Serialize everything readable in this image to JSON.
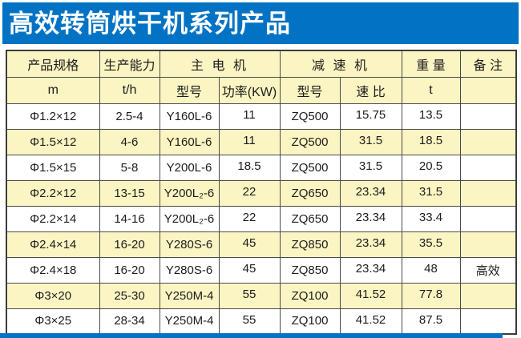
{
  "title": "高效转筒烘干机系列产品",
  "colors": {
    "banner_blue": "#0273c4",
    "stripe_yellow": "#fbf5c3",
    "title_text": "#ffffff"
  },
  "table": {
    "header_top": {
      "spec": "产品规格",
      "capacity": "生产能力",
      "motor": "主 电 机",
      "reducer": "减 速 机",
      "weight": "重 量",
      "remark": "备 注"
    },
    "header_sub": {
      "spec_unit": "m",
      "capacity_unit": "t/h",
      "motor_model": "型号",
      "motor_power": "功率(KW)",
      "reducer_model": "型号",
      "reducer_ratio": "速 比",
      "weight_unit": "t",
      "remark_blank": ""
    },
    "rows": [
      [
        "Φ1.2×12",
        "2.5-4",
        "Y160L-6",
        "11",
        "ZQ500",
        "15.75",
        "13.5",
        ""
      ],
      [
        "Φ1.5×12",
        "4-6",
        "Y160L-6",
        "11",
        "ZQ500",
        "31.5",
        "18.5",
        ""
      ],
      [
        "Φ1.5×15",
        "5-8",
        "Y200L-6",
        "18.5",
        "ZQ500",
        "31.5",
        "20.5",
        ""
      ],
      [
        "Φ2.2×12",
        "13-15",
        "Y200L₂-6",
        "22",
        "ZQ650",
        "23.34",
        "31.5",
        ""
      ],
      [
        "Φ2.2×14",
        "14-16",
        "Y200L₂-6",
        "22",
        "ZQ650",
        "23.34",
        "33.4",
        ""
      ],
      [
        "Φ2.4×14",
        "16-20",
        "Y280S-6",
        "45",
        "ZQ850",
        "23.34",
        "35.5",
        ""
      ],
      [
        "Φ2.4×18",
        "16-20",
        "Y280S-6",
        "45",
        "ZQ850",
        "23.34",
        "48",
        "高效"
      ],
      [
        "Φ3×20",
        "25-30",
        "Y250M-4",
        "55",
        "ZQ100",
        "41.52",
        "77.8",
        ""
      ],
      [
        "Φ3×25",
        "28-34",
        "Y250M-4",
        "55",
        "ZQ100",
        "41.52",
        "87.5",
        ""
      ]
    ]
  }
}
